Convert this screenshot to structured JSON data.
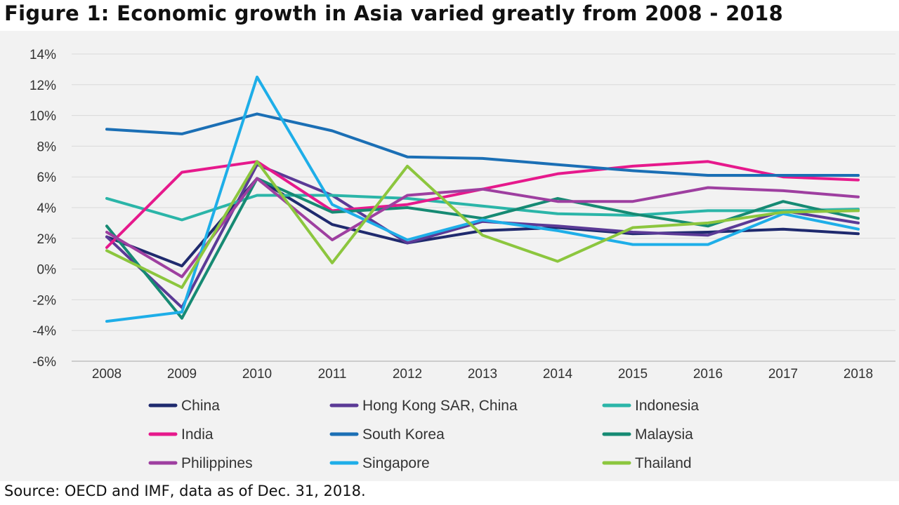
{
  "title": "Figure 1: Economic growth in Asia varied greatly from 2008 - 2018",
  "source": "Source: OECD and IMF, data as of Dec. 31, 2018.",
  "chart_data": {
    "type": "line",
    "title": "Figure 1: Economic growth in Asia varied greatly from 2008 - 2018",
    "xlabel": "",
    "ylabel": "",
    "x": [
      "2008",
      "2009",
      "2010",
      "2011",
      "2012",
      "2013",
      "2014",
      "2015",
      "2016",
      "2017",
      "2018"
    ],
    "ylim": [
      -6,
      14
    ],
    "yticks": [
      -6,
      -4,
      -2,
      0,
      2,
      4,
      6,
      8,
      10,
      12,
      14
    ],
    "ytick_labels": [
      "-6%",
      "-4%",
      "-2%",
      "0%",
      "2%",
      "4%",
      "6%",
      "8%",
      "10%",
      "12%",
      "14%"
    ],
    "grid": "horizontal",
    "legend_position": "bottom",
    "series": [
      {
        "name": "China",
        "color": "#1f2a6e",
        "values": [
          2.1,
          0.2,
          5.9,
          2.9,
          1.7,
          2.5,
          2.7,
          2.3,
          2.4,
          2.6,
          2.3
        ]
      },
      {
        "name": "Hong Kong SAR, China",
        "color": "#5b3a96",
        "values": [
          2.1,
          -2.5,
          6.8,
          4.8,
          1.7,
          3.1,
          2.8,
          2.4,
          2.2,
          3.8,
          3.0
        ]
      },
      {
        "name": "Indonesia",
        "color": "#2bb5a8",
        "values": [
          4.6,
          3.2,
          4.8,
          4.8,
          4.6,
          4.1,
          3.6,
          3.5,
          3.8,
          3.8,
          3.9
        ]
      },
      {
        "name": "India",
        "color": "#e6198c",
        "values": [
          1.4,
          6.3,
          7.0,
          3.8,
          4.2,
          5.2,
          6.2,
          6.7,
          7.0,
          6.0,
          5.8
        ]
      },
      {
        "name": "South Korea",
        "color": "#1b6fb5",
        "values": [
          9.1,
          8.8,
          10.1,
          9.0,
          7.3,
          7.2,
          6.8,
          6.4,
          6.1,
          6.1,
          6.1
        ]
      },
      {
        "name": "Malaysia",
        "color": "#168a73",
        "values": [
          2.8,
          -3.2,
          5.9,
          3.7,
          4.0,
          3.3,
          4.6,
          3.6,
          2.8,
          4.4,
          3.3
        ]
      },
      {
        "name": "Philippines",
        "color": "#9e3fa0",
        "values": [
          2.4,
          -0.5,
          5.9,
          1.9,
          4.8,
          5.2,
          4.4,
          4.4,
          5.3,
          5.1,
          4.7
        ]
      },
      {
        "name": "Singapore",
        "color": "#1eaee8",
        "values": [
          -3.4,
          -2.8,
          12.5,
          4.2,
          1.9,
          3.2,
          2.5,
          1.6,
          1.6,
          3.6,
          2.6
        ]
      },
      {
        "name": "Thailand",
        "color": "#8cc63e",
        "values": [
          1.2,
          -1.2,
          7.0,
          0.4,
          6.7,
          2.2,
          0.5,
          2.7,
          3.0,
          3.7,
          3.8
        ]
      }
    ]
  }
}
